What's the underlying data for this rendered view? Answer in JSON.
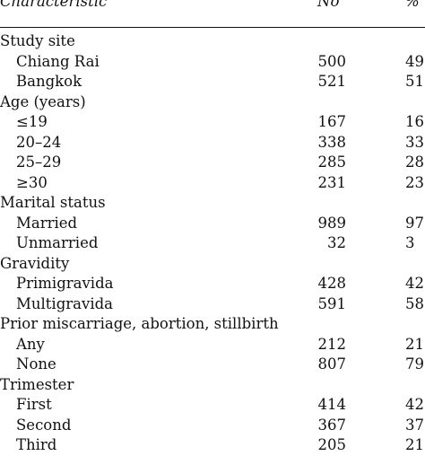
{
  "header": {
    "characteristic": "Characteristic",
    "no": "No",
    "percent": "%"
  },
  "rows": [
    {
      "type": "group",
      "label": "Study site",
      "no": "",
      "pct": ""
    },
    {
      "type": "item",
      "label": "Chiang Rai",
      "no": "500",
      "pct": "49"
    },
    {
      "type": "item",
      "label": "Bangkok",
      "no": "521",
      "pct": "51"
    },
    {
      "type": "group",
      "label": "Age (years)",
      "no": "",
      "pct": ""
    },
    {
      "type": "item",
      "label": "≤19",
      "no": "167",
      "pct": "16"
    },
    {
      "type": "item",
      "label": "20–24",
      "no": "338",
      "pct": "33"
    },
    {
      "type": "item",
      "label": "25–29",
      "no": "285",
      "pct": "28"
    },
    {
      "type": "item",
      "label": "≥30",
      "no": "231",
      "pct": "23"
    },
    {
      "type": "group",
      "label": "Marital status",
      "no": "",
      "pct": ""
    },
    {
      "type": "item",
      "label": "Married",
      "no": "989",
      "pct": "97"
    },
    {
      "type": "item",
      "label": "Unmarried",
      "no": "32",
      "pct": "3"
    },
    {
      "type": "group",
      "label": "Gravidity",
      "no": "",
      "pct": ""
    },
    {
      "type": "item",
      "label": "Primigravida",
      "no": "428",
      "pct": "42"
    },
    {
      "type": "item",
      "label": "Multigravida",
      "no": "591",
      "pct": "58"
    },
    {
      "type": "group",
      "label": "Prior miscarriage, abortion, stillbirth",
      "no": "",
      "pct": ""
    },
    {
      "type": "item",
      "label": "Any",
      "no": "212",
      "pct": "21"
    },
    {
      "type": "item",
      "label": "None",
      "no": "807",
      "pct": "79"
    },
    {
      "type": "group",
      "label": "Trimester",
      "no": "",
      "pct": ""
    },
    {
      "type": "item",
      "label": "First",
      "no": "414",
      "pct": "42"
    },
    {
      "type": "item",
      "label": "Second",
      "no": "367",
      "pct": "37"
    },
    {
      "type": "item",
      "label": "Third",
      "no": "205",
      "pct": "21"
    }
  ]
}
